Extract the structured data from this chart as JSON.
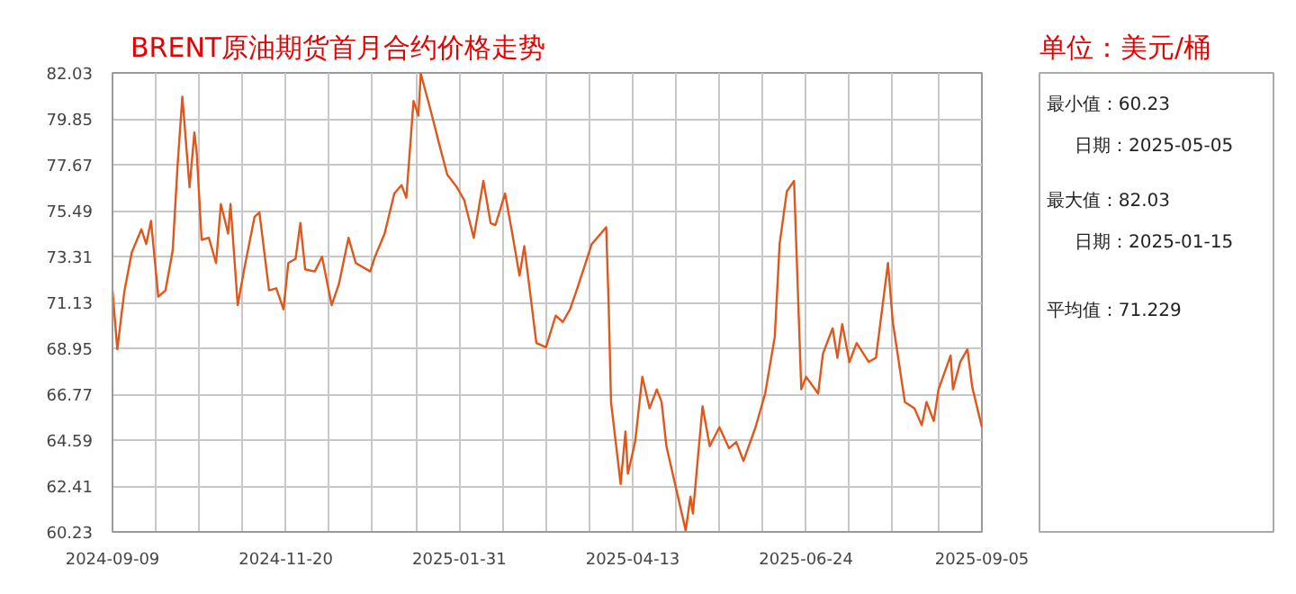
{
  "chart_data": {
    "type": "line",
    "title": "BRENT原油期货首月合约价格走势",
    "ylabel": "单位：美元/桶",
    "annotations": [
      "最小值：60.23",
      "日期：2025-05-05",
      "最大值：82.03",
      "日期：2025-01-15",
      "平均值：71.229"
    ],
    "x": [
      "2024-09-09",
      "2024-09-11",
      "2024-09-13",
      "2024-09-14",
      "2024-09-17",
      "2024-09-21",
      "2024-09-23",
      "2024-09-25",
      "2024-09-28",
      "2024-10-01",
      "2024-10-04",
      "2024-10-06",
      "2024-10-08",
      "2024-10-11",
      "2024-10-13",
      "2024-10-14",
      "2024-10-16",
      "2024-10-19",
      "2024-10-22",
      "2024-10-24",
      "2024-10-27",
      "2024-10-28",
      "2024-10-31",
      "2024-11-03",
      "2024-11-07",
      "2024-11-09",
      "2024-11-13",
      "2024-11-16",
      "2024-11-19",
      "2024-11-21",
      "2024-11-24",
      "2024-11-26",
      "2024-11-28",
      "2024-12-02",
      "2024-12-05",
      "2024-12-09",
      "2024-12-12",
      "2024-12-16",
      "2024-12-19",
      "2024-12-25",
      "2024-12-27",
      "2024-12-31",
      "2025-01-04",
      "2025-01-07",
      "2025-01-09",
      "2025-01-12",
      "2025-01-14",
      "2025-01-15",
      "2025-01-19",
      "2025-01-23",
      "2025-01-26",
      "2025-01-30",
      "2025-02-02",
      "2025-02-06",
      "2025-02-10",
      "2025-02-13",
      "2025-02-15",
      "2025-02-19",
      "2025-02-22",
      "2025-02-25",
      "2025-02-27",
      "2025-03-04",
      "2025-03-08",
      "2025-03-12",
      "2025-03-15",
      "2025-03-18",
      "2025-03-21",
      "2025-03-27",
      "2025-04-02",
      "2025-04-03",
      "2025-04-04",
      "2025-04-08",
      "2025-04-10",
      "2025-04-11",
      "2025-04-14",
      "2025-04-17",
      "2025-04-20",
      "2025-04-23",
      "2025-04-25",
      "2025-04-27",
      "2025-05-05",
      "2025-05-07",
      "2025-05-08",
      "2025-05-12",
      "2025-05-15",
      "2025-05-19",
      "2025-05-23",
      "2025-05-26",
      "2025-05-29",
      "2025-06-03",
      "2025-06-07",
      "2025-06-11",
      "2025-06-13",
      "2025-06-16",
      "2025-06-19",
      "2025-06-22",
      "2025-06-24",
      "2025-06-29",
      "2025-07-01",
      "2025-07-05",
      "2025-07-07",
      "2025-07-09",
      "2025-07-12",
      "2025-07-15",
      "2025-07-20",
      "2025-07-23",
      "2025-07-28",
      "2025-07-30",
      "2025-08-04",
      "2025-08-08",
      "2025-08-11",
      "2025-08-13",
      "2025-08-16",
      "2025-08-18",
      "2025-08-23",
      "2025-08-24",
      "2025-08-27",
      "2025-08-30",
      "2025-09-01",
      "2025-09-05"
    ],
    "series": [
      {
        "color": "#e0561b",
        "values": [
          71.7,
          68.9,
          70.8,
          71.7,
          73.5,
          74.6,
          73.9,
          75.0,
          71.4,
          71.7,
          73.6,
          77.6,
          80.9,
          76.6,
          79.2,
          78.2,
          74.1,
          74.2,
          73.0,
          75.8,
          74.4,
          75.8,
          71.0,
          72.9,
          75.2,
          75.4,
          71.7,
          71.8,
          70.8,
          73.0,
          73.2,
          74.9,
          72.7,
          72.6,
          73.3,
          71.0,
          72.0,
          74.2,
          73.0,
          72.6,
          73.3,
          74.4,
          76.3,
          76.7,
          76.1,
          80.7,
          80.0,
          82.0,
          80.3,
          78.5,
          77.2,
          76.6,
          76.0,
          74.2,
          76.9,
          74.9,
          74.8,
          76.3,
          74.4,
          72.4,
          73.8,
          69.2,
          69.0,
          70.5,
          70.2,
          70.8,
          71.8,
          73.9,
          74.7,
          71.1,
          66.4,
          62.5,
          65.0,
          63.0,
          64.5,
          67.6,
          66.1,
          67.0,
          66.4,
          64.3,
          60.3,
          61.9,
          61.1,
          66.2,
          64.3,
          65.2,
          64.2,
          64.5,
          63.6,
          65.2,
          66.8,
          69.5,
          73.9,
          76.4,
          76.9,
          67.0,
          67.6,
          66.8,
          68.7,
          69.9,
          68.5,
          70.1,
          68.3,
          69.2,
          68.3,
          68.5,
          73.0,
          70.2,
          66.4,
          66.1,
          65.3,
          66.4,
          65.5,
          67.0,
          68.6,
          67.0,
          68.3,
          68.9,
          67.1,
          65.2
        ]
      }
    ],
    "xlim": [
      "2024-09-09",
      "2025-09-05"
    ],
    "ylim": [
      60.23,
      82.03
    ],
    "xticks": [
      "2024-09-09",
      {
        "value": "2024-09-27",
        "label": null
      },
      {
        "value": "2024-10-15",
        "label": null
      },
      {
        "value": "2024-11-02",
        "label": null
      },
      "2024-11-20",
      {
        "value": "2024-12-08",
        "label": null
      },
      {
        "value": "2024-12-26",
        "label": null
      },
      {
        "value": "2025-01-13",
        "label": null
      },
      "2025-01-31",
      {
        "value": "2025-02-18",
        "label": null
      },
      {
        "value": "2025-03-08",
        "label": null
      },
      {
        "value": "2025-03-26",
        "label": null
      },
      "2025-04-13",
      {
        "value": "2025-05-01",
        "label": null
      },
      {
        "value": "2025-05-19",
        "label": null
      },
      {
        "value": "2025-06-06",
        "label": null
      },
      "2025-06-24",
      {
        "value": "2025-07-12",
        "label": null
      },
      {
        "value": "2025-07-30",
        "label": null
      },
      {
        "value": "2025-08-18",
        "label": null
      },
      "2025-09-05"
    ],
    "yticks": [
      60.23,
      62.41,
      64.59,
      66.77,
      68.95,
      71.13,
      73.31,
      75.49,
      77.67,
      79.85,
      82.03
    ],
    "grid": true
  }
}
